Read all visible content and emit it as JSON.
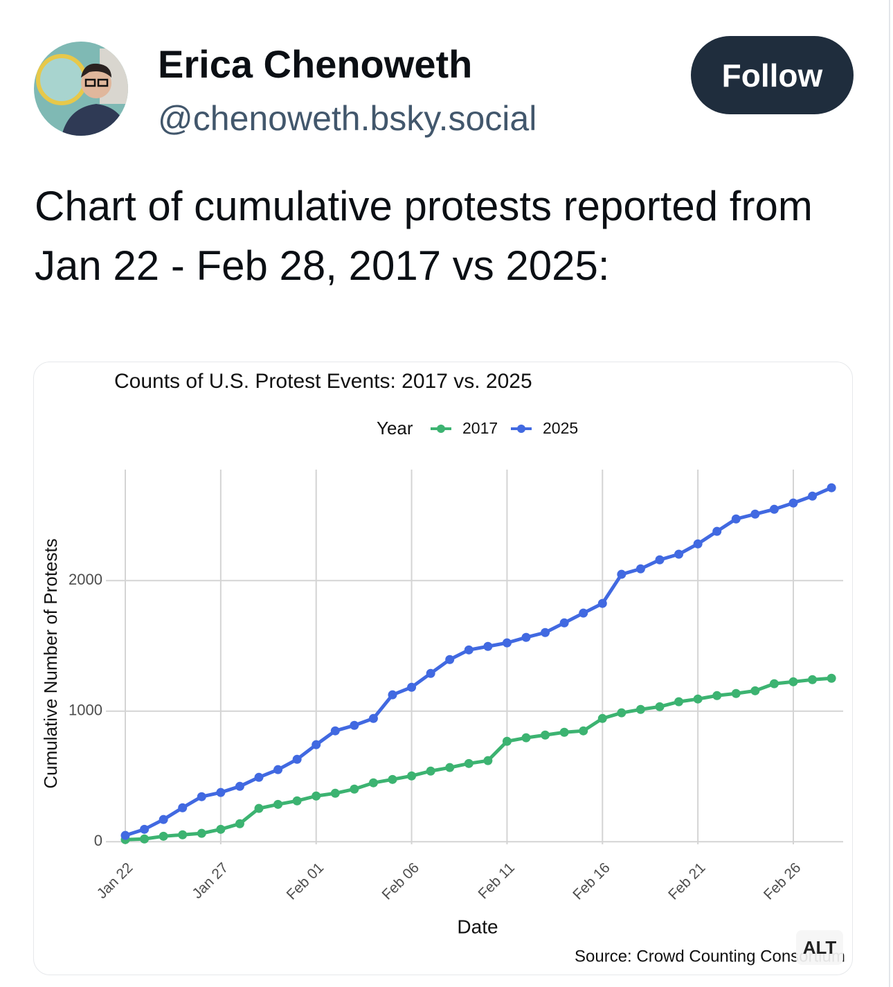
{
  "post": {
    "name": "Erica Chenoweth",
    "handle": "@chenoweth.bsky.social",
    "follow": "Follow",
    "text": "Chart of cumulative protests reported from Jan 22 - Feb 28, 2017 vs 2025:",
    "alt": "ALT"
  },
  "chart_data": {
    "type": "line",
    "title": "Counts of U.S. Protest Events: 2017 vs. 2025",
    "legend_title": "Year",
    "x_label": "Date",
    "y_label": "Cumulative Number of Protests",
    "source": "Source: Crowd Counting Consortium",
    "categories": [
      "Jan 22",
      null,
      null,
      null,
      null,
      "Jan 27",
      null,
      null,
      null,
      null,
      "Feb 01",
      null,
      null,
      null,
      null,
      "Feb 06",
      null,
      null,
      null,
      null,
      "Feb 11",
      null,
      null,
      null,
      null,
      "Feb 16",
      null,
      null,
      null,
      null,
      "Feb 21",
      null,
      null,
      null,
      null,
      "Feb 26",
      null,
      null
    ],
    "series": [
      {
        "name": "2017",
        "color": "#3cb371",
        "values": [
          16,
          21,
          42,
          53,
          64,
          95,
          138,
          255,
          286,
          313,
          350,
          371,
          403,
          451,
          477,
          504,
          541,
          568,
          599,
          621,
          769,
          796,
          817,
          838,
          849,
          944,
          987,
          1013,
          1034,
          1072,
          1093,
          1119,
          1135,
          1156,
          1210,
          1225,
          1241,
          1252
        ]
      },
      {
        "name": "2025",
        "color": "#4169e1",
        "values": [
          48,
          95,
          170,
          260,
          345,
          377,
          424,
          493,
          552,
          631,
          743,
          849,
          891,
          944,
          1125,
          1183,
          1289,
          1395,
          1469,
          1496,
          1523,
          1565,
          1602,
          1676,
          1751,
          1825,
          2048,
          2090,
          2159,
          2202,
          2281,
          2377,
          2472,
          2509,
          2546,
          2594,
          2647,
          2711
        ]
      }
    ],
    "ylim": [
      -20,
      2850
    ],
    "yticks": [
      0,
      1000,
      2000
    ],
    "grid": true
  }
}
